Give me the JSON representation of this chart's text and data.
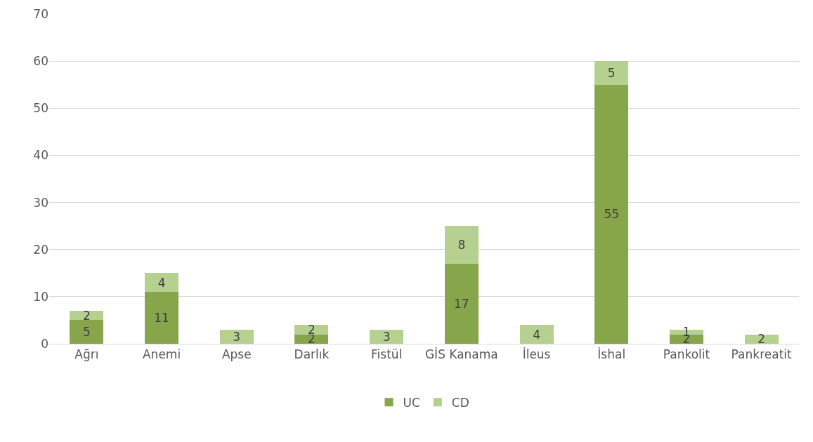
{
  "chart_data": {
    "type": "bar",
    "stacked": true,
    "categories": [
      "Ağrı",
      "Anemi",
      "Apse",
      "Darlık",
      "Fistül",
      "GİS Kanama",
      "İleus",
      "İshal",
      "Pankolit",
      "Pankreatit"
    ],
    "series": [
      {
        "name": "UC",
        "color": "#87a64b",
        "values": [
          5,
          11,
          null,
          2,
          null,
          17,
          null,
          55,
          2,
          null
        ]
      },
      {
        "name": "CD",
        "color": "#b6d08f",
        "values": [
          2,
          4,
          3,
          2,
          3,
          8,
          4,
          5,
          1,
          2
        ]
      }
    ],
    "ylim": [
      0,
      70
    ],
    "yticks": [
      0,
      10,
      20,
      30,
      40,
      50,
      60,
      70
    ],
    "grid": "y",
    "legend": "bottom",
    "data_labels": true
  }
}
